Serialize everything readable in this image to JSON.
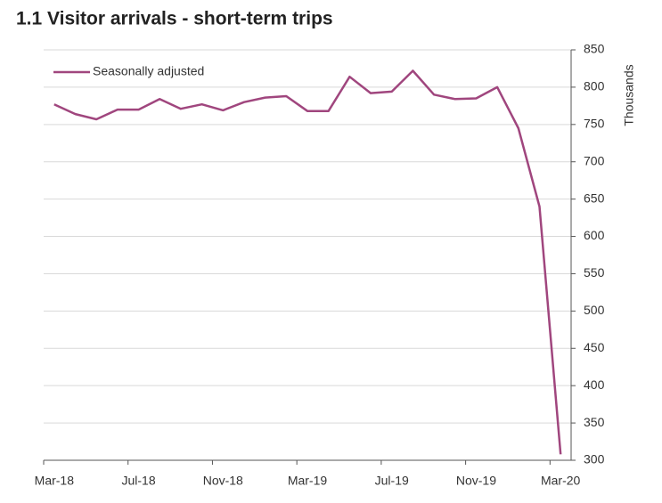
{
  "chart_data": {
    "type": "line",
    "title": "1.1 Visitor arrivals - short-term trips",
    "y_label": "Thousands",
    "categories": [
      "Mar-18",
      null,
      null,
      null,
      "Jul-18",
      null,
      null,
      null,
      "Nov-18",
      null,
      null,
      null,
      "Mar-19",
      null,
      null,
      null,
      "Jul-19",
      null,
      null,
      null,
      "Nov-19",
      null,
      null,
      null,
      "Mar-20"
    ],
    "series": [
      {
        "name": "Seasonally adjusted",
        "color": "#a0467e",
        "values": [
          777,
          764,
          757,
          770,
          770,
          784,
          771,
          777,
          769,
          780,
          786,
          788,
          768,
          768,
          814,
          792,
          794,
          822,
          790,
          784,
          785,
          800,
          745,
          640,
          308
        ]
      }
    ],
    "ylim": [
      300,
      850
    ],
    "yticks": [
      300,
      350,
      400,
      450,
      500,
      550,
      600,
      650,
      700,
      750,
      800,
      850
    ],
    "grid": true,
    "legend": "top-left"
  }
}
